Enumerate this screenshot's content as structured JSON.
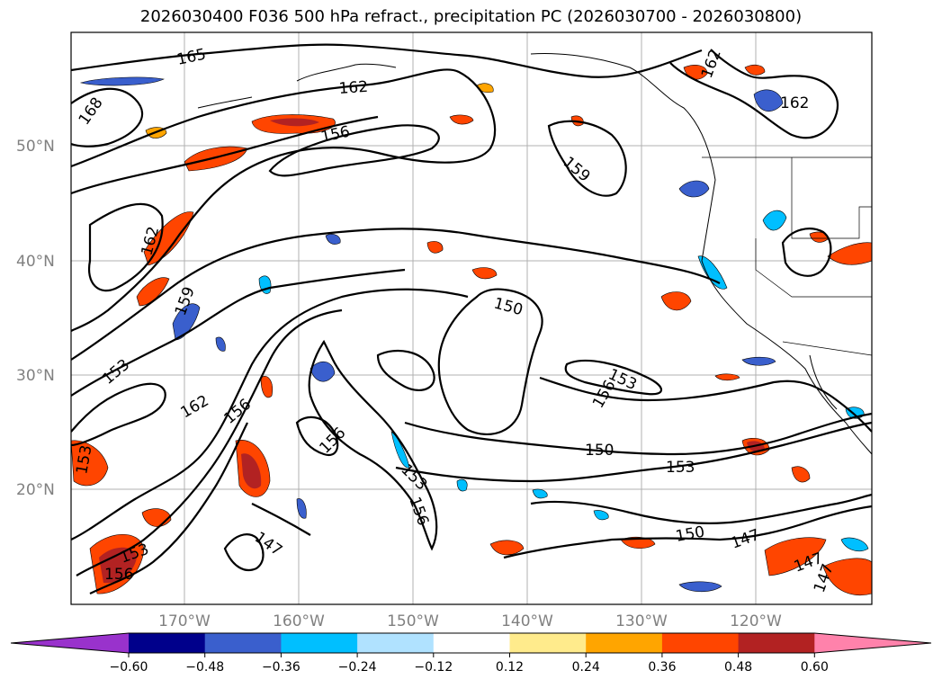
{
  "title": "2026030400 F036 500 hPa refract., precipitation PC (2026030700 - 2026030800)",
  "lat_labels": [
    "50°N",
    "40°N",
    "30°N",
    "20°N"
  ],
  "lon_labels": [
    "170°W",
    "160°W",
    "150°W",
    "140°W",
    "130°W",
    "120°W"
  ],
  "colorbar": {
    "ticks": [
      "−0.60",
      "−0.48",
      "−0.36",
      "−0.24",
      "−0.12",
      "0.12",
      "0.24",
      "0.36",
      "0.48",
      "0.60"
    ],
    "colors": [
      "#9932cc",
      "#00008b",
      "#3a5fcd",
      "#00bfff",
      "#b0e2ff",
      "#ffffff",
      "#ffeb8c",
      "#ffa500",
      "#ff4500",
      "#b22222",
      "#ff82ab"
    ]
  },
  "contour_labels": [
    "165",
    "162",
    "168",
    "156",
    "162",
    "159",
    "162",
    "159",
    "153",
    "150",
    "162",
    "156",
    "153",
    "156",
    "156",
    "153",
    "156",
    "150",
    "153",
    "150",
    "147",
    "147",
    "147",
    "153",
    "156",
    "153",
    "147",
    "162"
  ],
  "colors": {
    "contour": "#000000",
    "grid": "#b0b0b0",
    "axis_label": "#808080"
  }
}
